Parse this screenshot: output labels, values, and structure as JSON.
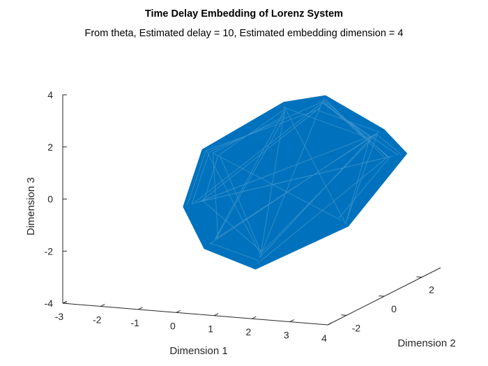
{
  "chart_data": {
    "type": "line",
    "projection": "3d",
    "title": "Time Delay Embedding of Lorenz System",
    "subtitle": "From theta, Estimated delay = 10, Estimated embedding dimension = 4",
    "xlabel": "Dimension 1",
    "ylabel": "Dimension 2",
    "zlabel": "Dimension 3",
    "xlim": [
      -3,
      4
    ],
    "ylim": [
      -3,
      3
    ],
    "zlim": [
      -4,
      4
    ],
    "xticks": [
      "-3",
      "-2",
      "-1",
      "0",
      "1",
      "2",
      "3",
      "4"
    ],
    "yticks": [
      "-2",
      "0",
      "2"
    ],
    "zticks": [
      "-4",
      "-2",
      "0",
      "2",
      "4"
    ],
    "grid": false,
    "series": [
      {
        "color": "#0072BD",
        "hull": [
          [
            -1.9,
            1.2,
            -1.7
          ],
          [
            -1.1,
            0.6,
            0.8
          ],
          [
            1.2,
            0.3,
            3.0
          ],
          [
            2.2,
            0.5,
            3.3
          ],
          [
            3.3,
            1.4,
            1.8
          ],
          [
            3.6,
            2.0,
            0.7
          ],
          [
            2.6,
            0.9,
            -1.8
          ],
          [
            0.9,
            -0.6,
            -3.1
          ],
          [
            -0.6,
            -0.3,
            -2.6
          ]
        ]
      }
    ]
  }
}
